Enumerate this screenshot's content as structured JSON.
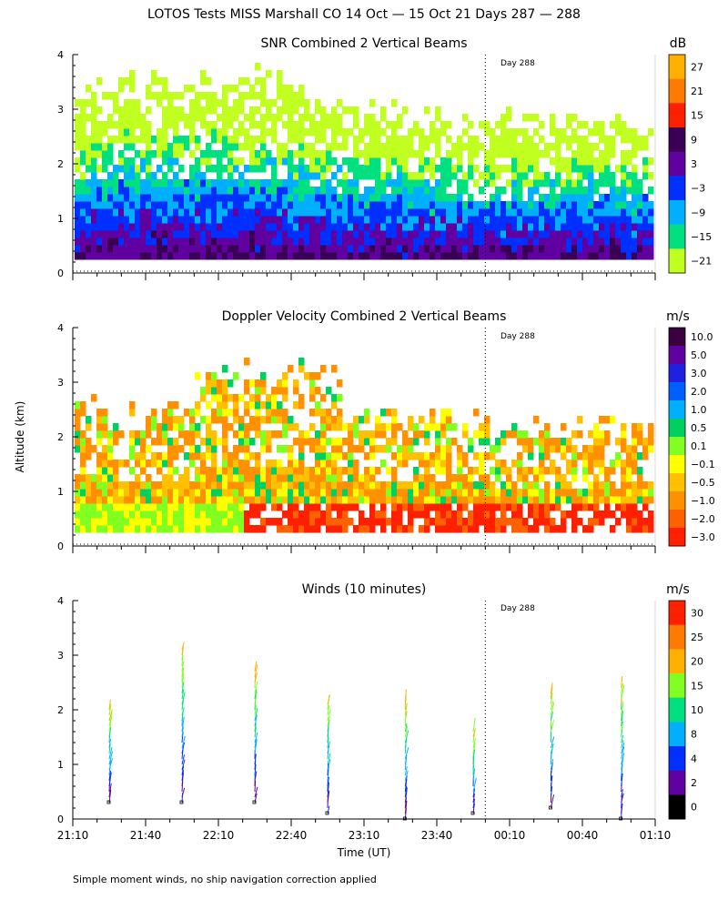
{
  "figure": {
    "title": "LOTOS Tests MISS Marshall CO  14 Oct — 15 Oct 21 Days 287 — 288",
    "y_axis_label": "Altitude (km)",
    "x_axis_label": "Time (UT)",
    "footnote": "Simple moment winds, no ship navigation correction applied",
    "day_marker_label": "Day 288"
  },
  "chart_data": [
    {
      "type": "heatmap",
      "title": "SNR Combined 2 Vertical Beams",
      "ylabel": "Altitude (km)",
      "xlabel": "",
      "x_ticks": [
        "21:10",
        "21:40",
        "22:10",
        "22:40",
        "23:10",
        "23:40",
        "00:10",
        "00:40",
        "01:10"
      ],
      "x_range_minutes": [
        0,
        240
      ],
      "ylim": [
        0,
        4
      ],
      "y_ticks": [
        "0",
        "1",
        "2",
        "3",
        "4"
      ],
      "day_boundary_minutes": 170,
      "colorbar": {
        "unit": "dB",
        "labels": [
          "27",
          "21",
          "15",
          "9",
          "3",
          "−3",
          "−9",
          "−15",
          "−21"
        ],
        "colors": [
          "#ffb000",
          "#ff7a00",
          "#ff2000",
          "#3a0055",
          "#6000a0",
          "#0030ff",
          "#00b0ff",
          "#00e080",
          "#c0ff20"
        ]
      },
      "field_description": "SNR decreasing with altitude: highest near 0.3-0.6 km, lowest near top of coverage (~3 km at 21:40-22:20, ~2.3 km after 00:00)"
    },
    {
      "type": "heatmap",
      "title": "Doppler Velocity Combined 2 Vertical Beams",
      "ylabel": "Altitude (km)",
      "xlabel": "",
      "x_ticks": [
        "21:10",
        "21:40",
        "22:10",
        "22:40",
        "23:10",
        "23:40",
        "00:10",
        "00:40",
        "01:10"
      ],
      "x_range_minutes": [
        0,
        240
      ],
      "ylim": [
        0,
        4
      ],
      "y_ticks": [
        "0",
        "1",
        "2",
        "3",
        "4"
      ],
      "day_boundary_minutes": 170,
      "colorbar": {
        "unit": "m/s",
        "labels": [
          "10.0",
          "5.0",
          "3.0",
          "2.0",
          "1.0",
          "0.5",
          "0.1",
          "−0.1",
          "−0.5",
          "−1.0",
          "−2.0",
          "−3.0"
        ],
        "colors": [
          "#3a0040",
          "#6000a0",
          "#2020e0",
          "#0060ff",
          "#00b0ff",
          "#00d060",
          "#80ff20",
          "#ffff00",
          "#ffc000",
          "#ff9000",
          "#ff6000",
          "#ff2000"
        ]
      }
    },
    {
      "type": "scatter",
      "subtype": "wind_barbs",
      "title": "Winds (10 minutes)",
      "ylabel": "Altitude (km)",
      "xlabel": "Time (UT)",
      "x_ticks": [
        "21:10",
        "21:40",
        "22:10",
        "22:40",
        "23:10",
        "23:40",
        "00:10",
        "00:40",
        "01:10"
      ],
      "x_range_minutes": [
        0,
        240
      ],
      "ylim": [
        0,
        4
      ],
      "y_ticks": [
        "0",
        "1",
        "2",
        "3",
        "4"
      ],
      "day_boundary_minutes": 170,
      "profile_times_minutes": [
        15,
        45,
        75,
        105,
        137,
        165,
        197,
        226
      ],
      "profiles": [
        {
          "time_min": 15,
          "top_km": 2.1,
          "low_km": 0.3
        },
        {
          "time_min": 45,
          "top_km": 3.2,
          "low_km": 0.3
        },
        {
          "time_min": 75,
          "top_km": 2.8,
          "low_km": 0.3
        },
        {
          "time_min": 105,
          "top_km": 2.2,
          "low_km": 0.1
        },
        {
          "time_min": 137,
          "top_km": 2.2,
          "low_km": 0.0
        },
        {
          "time_min": 165,
          "top_km": 1.7,
          "low_km": 0.1
        },
        {
          "time_min": 197,
          "top_km": 2.4,
          "low_km": 0.2
        },
        {
          "time_min": 226,
          "top_km": 2.5,
          "low_km": 0.0
        }
      ],
      "colorbar": {
        "unit": "m/s",
        "labels": [
          "30",
          "25",
          "20",
          "15",
          "10",
          "8",
          "4",
          "2",
          "0"
        ],
        "colors": [
          "#ff2000",
          "#ff7a00",
          "#ffb000",
          "#80ff20",
          "#00e080",
          "#00b0ff",
          "#0030ff",
          "#6000a0",
          "#000000"
        ]
      }
    }
  ]
}
